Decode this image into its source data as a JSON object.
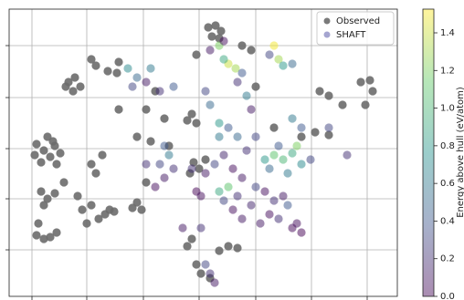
{
  "chart_data": {
    "type": "scatter",
    "xlim": [
      0,
      425
    ],
    "ylim": [
      0,
      315
    ],
    "xticks": [
      25,
      85,
      147,
      208,
      270,
      331,
      392
    ],
    "yticks": [
      51,
      107,
      162,
      218,
      275
    ],
    "grid": true,
    "legend": "upper right",
    "colormap": [
      "#440154",
      "#3b528b",
      "#21918c",
      "#5ec962",
      "#fde725"
    ],
    "colorbar": {
      "label": "Energy above hull (eV/atom)",
      "clim": [
        0,
        1.526
      ],
      "ticks": [
        {
          "value": 0,
          "label": "0.0"
        },
        0.2,
        0.4,
        0.6,
        0.8,
        {
          "value": 1,
          "label": "1.0"
        },
        1.2,
        1.4
      ]
    },
    "series": [
      {
        "name": "Observed",
        "color": "#6b6b6b",
        "x": [
          30,
          38,
          45,
          50,
          35,
          42,
          52,
          28,
          48,
          56,
          35,
          42,
          50,
          38,
          32,
          45,
          38,
          52,
          30,
          60,
          65,
          72,
          78,
          70,
          62,
          90,
          95,
          120,
          118,
          108,
          80,
          90,
          98,
          85,
          105,
          110,
          75,
          95,
          90,
          102,
          140,
          145,
          135,
          115,
          150,
          218,
          226,
          232,
          222,
          230,
          200,
          205,
          195,
          202,
          208,
          198,
          215,
          200,
          195,
          205,
          210,
          220,
          230,
          240,
          250,
          150,
          160,
          170,
          140,
          155,
          175,
          120,
          340,
          350,
          385,
          395,
          398,
          390,
          365,
          335,
          350,
          320,
          205,
          255,
          265,
          290,
          270
        ],
        "values": [
          167,
          160,
          153,
          165,
          147,
          175,
          145,
          155,
          170,
          157,
          115,
          107,
          113,
          100,
          80,
          65,
          63,
          70,
          67,
          125,
          235,
          240,
          230,
          225,
          230,
          260,
          253,
          257,
          245,
          247,
          95,
          100,
          85,
          80,
          90,
          95,
          110,
          135,
          145,
          155,
          103,
          95,
          97,
          93,
          125,
          295,
          297,
          291,
          285,
          283,
          200,
          190,
          193,
          147,
          140,
          135,
          150,
          63,
          55,
          35,
          25,
          20,
          50,
          55,
          53,
          205,
          225,
          195,
          175,
          170,
          165,
          205,
          225,
          220,
          235,
          237,
          225,
          210,
          210,
          180,
          177,
          175,
          265,
          275,
          270,
          185,
          230
        ]
      },
      {
        "name": "SHAFT",
        "color": "#8f8fc4",
        "x": [
          230,
          240,
          248,
          235,
          255,
          290,
          295,
          300,
          285,
          310,
          220,
          235,
          260,
          250,
          265,
          290,
          300,
          310,
          320,
          280,
          305,
          285,
          330,
          315,
          295,
          230,
          240,
          235,
          250,
          245,
          255,
          265,
          270,
          280,
          290,
          300,
          285,
          275,
          310,
          320,
          315,
          305,
          295,
          205,
          210,
          200,
          215,
          225,
          235,
          245,
          255,
          260,
          270,
          250,
          240,
          230,
          165,
          170,
          160,
          175,
          180,
          170,
          150,
          140,
          135,
          150,
          165,
          180,
          130,
          155,
          220,
          225,
          215,
          230,
          310,
          320,
          350,
          370,
          220,
          215,
          190,
          210
        ],
        "values": [
          275,
          255,
          250,
          260,
          245,
          275,
          260,
          253,
          265,
          255,
          270,
          280,
          220,
          235,
          205,
          155,
          150,
          157,
          145,
          150,
          135,
          140,
          150,
          165,
          165,
          115,
          120,
          105,
          110,
          95,
          85,
          100,
          120,
          115,
          105,
          110,
          90,
          80,
          75,
          70,
          80,
          100,
          85,
          115,
          110,
          140,
          135,
          145,
          155,
          140,
          130,
          160,
          175,
          175,
          185,
          175,
          145,
          130,
          120,
          155,
          140,
          165,
          145,
          240,
          230,
          235,
          225,
          230,
          250,
          250,
          25,
          15,
          35,
          190,
          195,
          185,
          185,
          155,
          210,
          225,
          75,
          75
        ],
        "energy": [
          1.2,
          1.4,
          1.3,
          0.9,
          0.4,
          1.5,
          1.3,
          0.8,
          0.3,
          0.5,
          0.1,
          0.05,
          0.6,
          0.2,
          0.1,
          1.1,
          1.0,
          0.9,
          0.7,
          0.8,
          0.6,
          0.5,
          0.3,
          1.2,
          0.4,
          0.9,
          1.1,
          0.3,
          0.2,
          0.05,
          0.1,
          0.15,
          0.3,
          0.05,
          0.2,
          0.1,
          0.05,
          0.1,
          0.02,
          0,
          0.05,
          0.4,
          0.2,
          0,
          0.05,
          0.2,
          0.1,
          0.3,
          0.15,
          0.05,
          0.1,
          0.2,
          0.3,
          0.5,
          0.4,
          0.6,
          0.3,
          0.1,
          0.05,
          0.6,
          0.2,
          0.4,
          0.2,
          0.5,
          0.3,
          0.1,
          0.2,
          0.4,
          0.7,
          0.6,
          0.2,
          0.1,
          0.3,
          0.8,
          0.6,
          0.4,
          0.3,
          0.2,
          0.5,
          0.3,
          0.1,
          0.2
        ]
      }
    ]
  }
}
